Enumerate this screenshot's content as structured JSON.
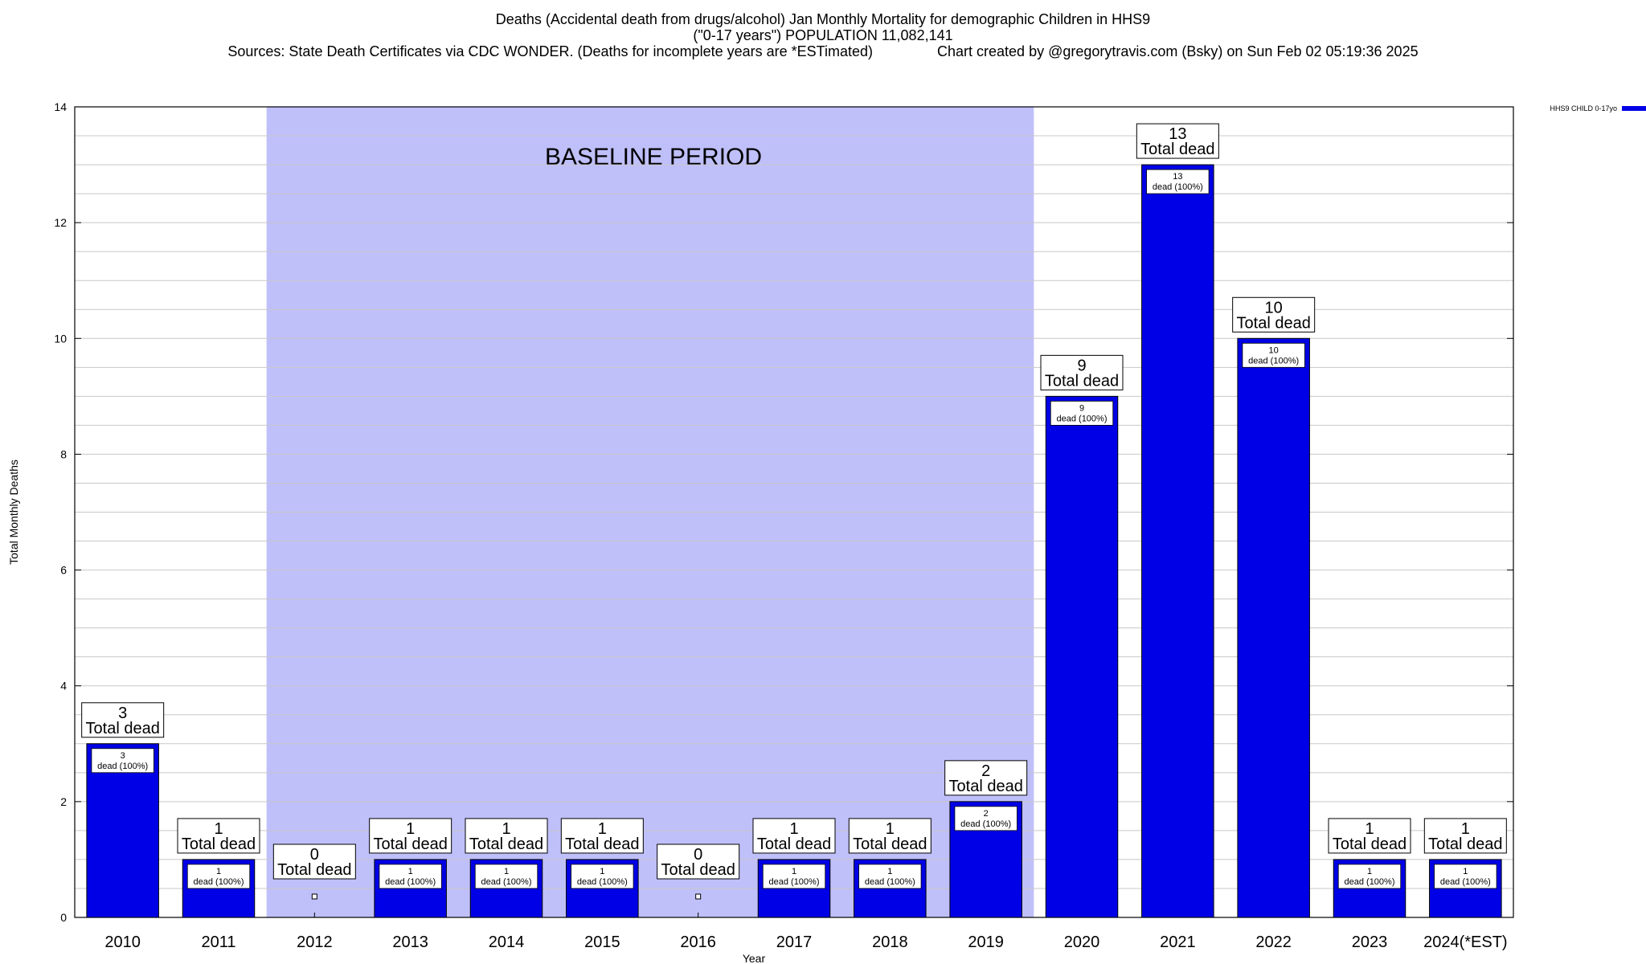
{
  "header": {
    "line1": "Deaths (Accidental death from drugs/alcohol) Jan Monthly Mortality for demographic Children in HHS9",
    "line2": "(\"0-17 years\") POPULATION 11,082,141",
    "line3": "Sources: State Death Certificates via CDC WONDER. (Deaths for incomplete years are *ESTimated)                Chart created by @gregorytravis.com (Bsky) on Sun Feb 02 05:19:36 2025"
  },
  "colors": {
    "bar": "#0000e6",
    "baseline": "#bfbffa",
    "grid": "#c8c8c8"
  },
  "chart_data": {
    "type": "bar",
    "xlabel": "Year",
    "ylabel": "Total Monthly Deaths",
    "ylim": [
      0,
      14
    ],
    "yticks": [
      0,
      2,
      4,
      6,
      8,
      10,
      12,
      14
    ],
    "grid": true,
    "legend_position": "top-right",
    "categories": [
      "2010",
      "2011",
      "2012",
      "2013",
      "2014",
      "2015",
      "2016",
      "2017",
      "2018",
      "2019",
      "2020",
      "2021",
      "2022",
      "2023",
      "2024(*EST)"
    ],
    "series": [
      {
        "name": "HHS9 CHILD 0-17yo",
        "values": [
          3,
          1,
          0,
          1,
          1,
          1,
          0,
          1,
          1,
          2,
          9,
          13,
          10,
          1,
          1
        ]
      }
    ],
    "total_label": "Total dead",
    "inner_label": "dead (100%)",
    "baseline": {
      "label": "BASELINE PERIOD",
      "from": "2012",
      "to": "2019"
    }
  }
}
